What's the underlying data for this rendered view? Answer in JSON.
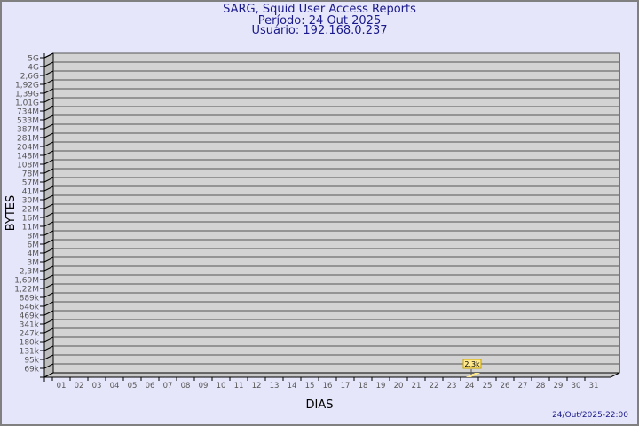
{
  "header": {
    "title": "SARG, Squid User Access Reports",
    "period": "Período: 24 Out 2025",
    "user": "Usuário: 192.168.0.237"
  },
  "footer": {
    "timestamp": "24/Out/2025-22:00"
  },
  "colors": {
    "background": "#e6e6fa",
    "plot": "#d3d3d3",
    "title": "#1a1a8c",
    "bar": "#ffe98c"
  },
  "chart_data": {
    "type": "bar",
    "xlabel": "DIAS",
    "ylabel": "BYTES",
    "y_scale": "log",
    "y_tick_labels": [
      "5G",
      "4G",
      "2,6G",
      "1,92G",
      "1,39G",
      "1,01G",
      "734M",
      "533M",
      "387M",
      "281M",
      "204M",
      "148M",
      "108M",
      "78M",
      "57M",
      "41M",
      "30M",
      "22M",
      "16M",
      "11M",
      "8M",
      "6M",
      "4M",
      "3M",
      "2,3M",
      "1,69M",
      "1,22M",
      "889k",
      "646k",
      "469k",
      "341k",
      "247k",
      "180k",
      "131k",
      "95k",
      "69k"
    ],
    "categories": [
      "01",
      "02",
      "03",
      "04",
      "05",
      "06",
      "07",
      "08",
      "09",
      "10",
      "11",
      "12",
      "13",
      "14",
      "15",
      "16",
      "17",
      "18",
      "19",
      "20",
      "21",
      "22",
      "23",
      "24",
      "25",
      "26",
      "27",
      "28",
      "29",
      "30",
      "31"
    ],
    "values": [
      null,
      null,
      null,
      null,
      null,
      null,
      null,
      null,
      null,
      null,
      null,
      null,
      null,
      null,
      null,
      null,
      null,
      null,
      null,
      null,
      null,
      null,
      null,
      2300,
      null,
      null,
      null,
      null,
      null,
      null,
      null
    ],
    "data_labels": {
      "24": "2,3k"
    },
    "grid": true,
    "three_d": true
  }
}
